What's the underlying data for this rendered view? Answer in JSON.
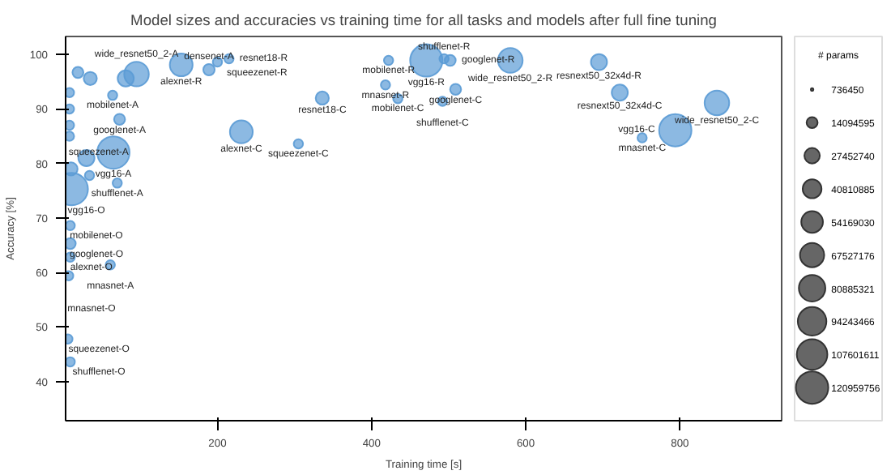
{
  "chart_data": {
    "type": "bubble",
    "title": "Model sizes and accuracies vs training time for all tasks and models after full fine tuning",
    "xlabel": "Training time [s]",
    "ylabel": "Accuracy [%]",
    "legend_title": "# params",
    "xlim": [
      3,
      932
    ],
    "ylim": [
      32.8,
      103.3
    ],
    "xticks": [
      200,
      400,
      600,
      800
    ],
    "yticks": [
      40,
      50,
      60,
      70,
      80,
      90,
      100
    ],
    "grid": false,
    "series": [
      {
        "color": "#5b9bd5",
        "x": [
          153,
          189,
          200,
          215,
          336,
          231,
          305,
          73,
          64,
          81,
          95,
          65,
          11,
          70,
          34,
          30,
          19,
          35,
          422,
          471,
          494,
          502,
          580,
          695,
          418,
          434,
          509,
          492,
          722,
          848,
          751,
          794,
          9,
          9,
          9,
          61,
          7,
          6,
          9,
          8,
          8,
          8,
          8,
          10
        ],
        "values": [
          98.1,
          97.2,
          98.6,
          99.2,
          92,
          85.8,
          83.6,
          88.1,
          92.5,
          95.6,
          96.4,
          82,
          75.3,
          76.4,
          77.8,
          81,
          96.7,
          95.6,
          98.9,
          98.9,
          99.2,
          98.9,
          98.9,
          98.6,
          94.4,
          91.9,
          93.6,
          91.4,
          93,
          91.1,
          84.7,
          86.1,
          68.6,
          65.3,
          62.8,
          61.4,
          59.4,
          47.8,
          43.6,
          93,
          90,
          87,
          85,
          79
        ],
        "sizes": [
          60000000,
          15000000,
          10000000,
          10000000,
          20000000,
          60000000,
          10000000,
          14000000,
          10000000,
          30000000,
          70000000,
          120959756,
          120959756,
          10000000,
          10000000,
          30000000,
          14000000,
          20000000,
          10000000,
          120959756,
          10000000,
          14000000,
          70000000,
          30000000,
          10000000,
          10000000,
          14000000,
          10000000,
          30000000,
          70000000,
          10000000,
          120959756,
          10000000,
          14000000,
          10000000,
          10000000,
          10000000,
          10000000,
          10000000,
          10000000,
          10000000,
          10000000,
          10000000,
          20000000
        ]
      }
    ],
    "size_legend": [
      736450,
      14094595,
      27452740,
      40810885,
      54169030,
      67527176,
      80885321,
      94243466,
      107601611,
      120959756
    ],
    "annotations": [
      {
        "text": "alexnet-R",
        "x": 153,
        "y": 98.1
      },
      {
        "text": "densenet-A",
        "x": 189,
        "y": 97.2
      },
      {
        "text": "squeezenet-R",
        "x": 200,
        "y": 98.6
      },
      {
        "text": "resnet18-R",
        "x": 215,
        "y": 99.2
      },
      {
        "text": "resnet18-C",
        "x": 336,
        "y": 92
      },
      {
        "text": "alexnet-C",
        "x": 231,
        "y": 85.8
      },
      {
        "text": "squeezenet-C",
        "x": 305,
        "y": 83.6
      },
      {
        "text": "googlenet-A",
        "x": 73,
        "y": 88.1
      },
      {
        "text": "mobilenet-A",
        "x": 64,
        "y": 92.5
      },
      {
        "text": "wide_resnet50_2-A",
        "x": 95,
        "y": 96.4
      },
      {
        "text": "vgg16-A",
        "x": 65,
        "y": 82
      },
      {
        "text": "vgg16-O",
        "x": 11,
        "y": 75.3
      },
      {
        "text": "shufflenet-A",
        "x": 70,
        "y": 76.4
      },
      {
        "text": "squeezenet-A",
        "x": 34,
        "y": 77.8
      },
      {
        "text": "mobilenet-R",
        "x": 422,
        "y": 98.9
      },
      {
        "text": "vgg16-R",
        "x": 471,
        "y": 98.9
      },
      {
        "text": "shufflenet-R",
        "x": 494,
        "y": 99.2
      },
      {
        "text": "googlenet-R",
        "x": 502,
        "y": 98.9
      },
      {
        "text": "wide_resnet50_2-R",
        "x": 580,
        "y": 98.9
      },
      {
        "text": "resnext50_32x4d-R",
        "x": 695,
        "y": 98.6
      },
      {
        "text": "mnasnet-R",
        "x": 418,
        "y": 94.4
      },
      {
        "text": "mobilenet-C",
        "x": 434,
        "y": 91.9
      },
      {
        "text": "googlenet-C",
        "x": 509,
        "y": 93.6
      },
      {
        "text": "shufflenet-C",
        "x": 492,
        "y": 91.4
      },
      {
        "text": "resnext50_32x4d-C",
        "x": 722,
        "y": 93
      },
      {
        "text": "wide_resnet50_2-C",
        "x": 848,
        "y": 91.1
      },
      {
        "text": "mnasnet-C",
        "x": 751,
        "y": 84.7
      },
      {
        "text": "vgg16-C",
        "x": 794,
        "y": 86.1
      },
      {
        "text": "mobilenet-O",
        "x": 9,
        "y": 68.6
      },
      {
        "text": "googlenet-O",
        "x": 9,
        "y": 65.3
      },
      {
        "text": "alexnet-O",
        "x": 9,
        "y": 62.8
      },
      {
        "text": "mnasnet-A",
        "x": 61,
        "y": 61.4
      },
      {
        "text": "mnasnet-O",
        "x": 7,
        "y": 59.4
      },
      {
        "text": "squeezenet-O",
        "x": 6,
        "y": 47.8
      },
      {
        "text": "shufflenet-O",
        "x": 9,
        "y": 43.6
      }
    ]
  }
}
